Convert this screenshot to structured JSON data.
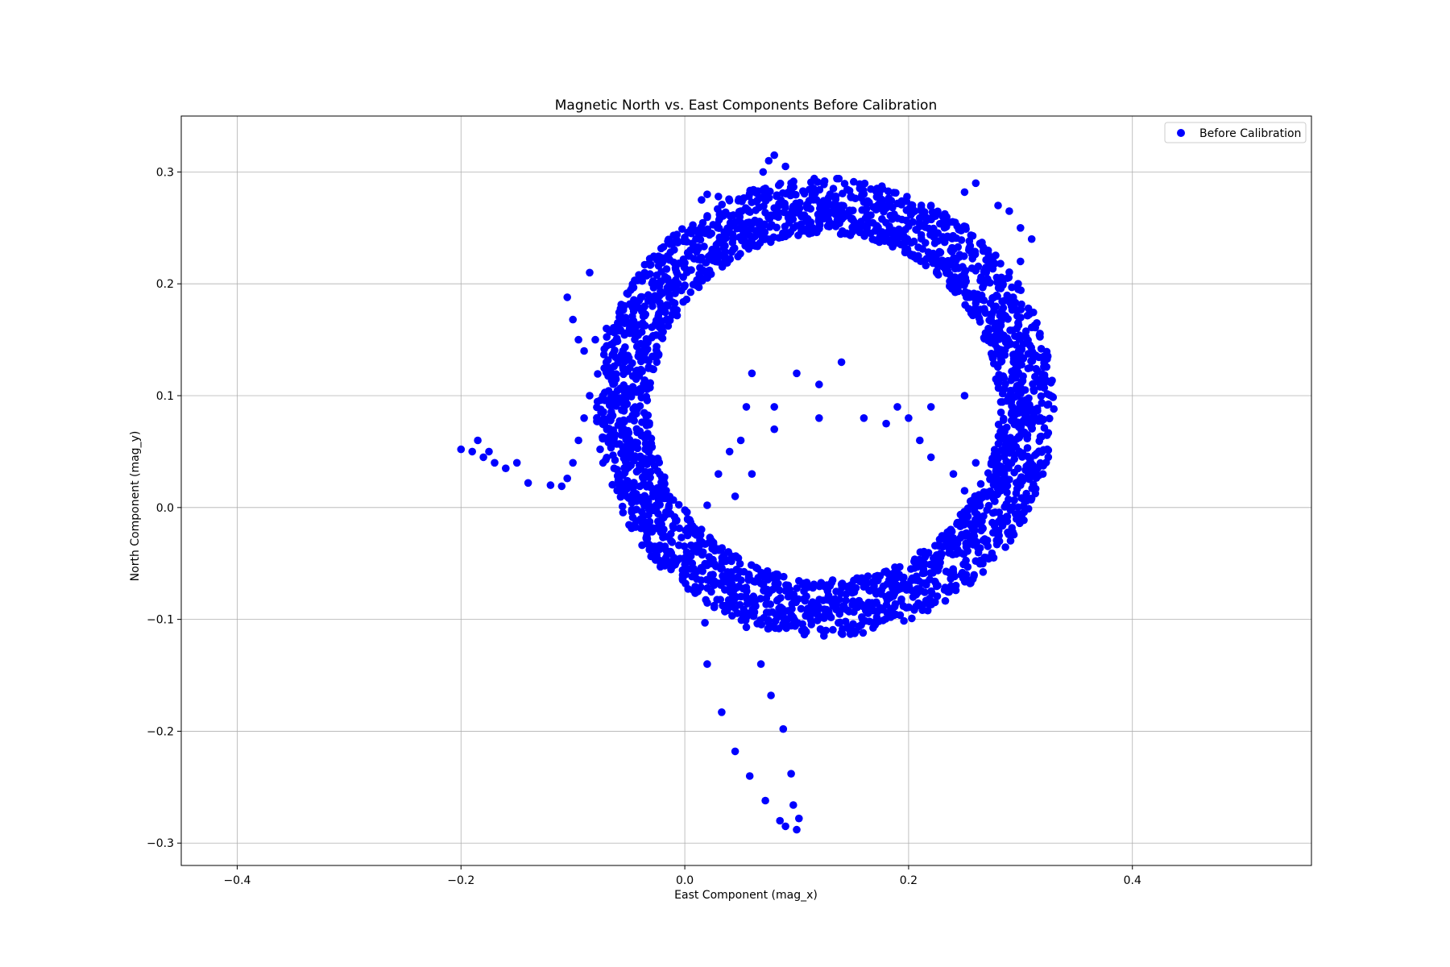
{
  "chart_data": {
    "type": "scatter",
    "title": "Magnetic North vs. East Components Before Calibration",
    "xlabel": "East Component (mag_x)",
    "ylabel": "North Component (mag_y)",
    "xlim": [
      -0.45,
      0.56
    ],
    "ylim": [
      -0.32,
      0.35
    ],
    "xticks": [
      -0.4,
      -0.2,
      0.0,
      0.2,
      0.4
    ],
    "xtick_labels": [
      "−0.4",
      "−0.2",
      "0.0",
      "0.2",
      "0.4"
    ],
    "yticks": [
      -0.3,
      -0.2,
      -0.1,
      0.0,
      0.1,
      0.2,
      0.3
    ],
    "ytick_labels": [
      "−0.3",
      "−0.2",
      "−0.1",
      "0.0",
      "0.1",
      "0.2",
      "0.3"
    ],
    "grid": true,
    "legend_position": "top-right",
    "series": [
      {
        "name": "Before Calibration",
        "color": "#0000ff",
        "marker": "circle",
        "ring": {
          "center_x": 0.125,
          "center_y": 0.09,
          "radius_x": 0.18,
          "radius_y": 0.18,
          "thickness": 0.025
        },
        "points": [
          [
            -0.2,
            0.052
          ],
          [
            -0.19,
            0.05
          ],
          [
            -0.185,
            0.06
          ],
          [
            -0.18,
            0.045
          ],
          [
            -0.175,
            0.05
          ],
          [
            -0.17,
            0.04
          ],
          [
            -0.16,
            0.035
          ],
          [
            -0.15,
            0.04
          ],
          [
            -0.14,
            0.022
          ],
          [
            -0.12,
            0.02
          ],
          [
            -0.11,
            0.019
          ],
          [
            -0.105,
            0.026
          ],
          [
            -0.1,
            0.04
          ],
          [
            -0.095,
            0.06
          ],
          [
            -0.09,
            0.08
          ],
          [
            -0.085,
            0.1
          ],
          [
            -0.08,
            0.15
          ],
          [
            -0.085,
            0.21
          ],
          [
            -0.105,
            0.188
          ],
          [
            -0.1,
            0.168
          ],
          [
            -0.095,
            0.15
          ],
          [
            -0.09,
            0.14
          ],
          [
            -0.07,
            0.16
          ],
          [
            -0.06,
            0.165
          ],
          [
            0.02,
            0.002
          ],
          [
            0.03,
            0.03
          ],
          [
            0.04,
            0.05
          ],
          [
            0.05,
            0.06
          ],
          [
            0.06,
            0.03
          ],
          [
            0.045,
            0.01
          ],
          [
            0.055,
            0.09
          ],
          [
            0.06,
            0.12
          ],
          [
            0.08,
            0.09
          ],
          [
            0.08,
            0.07
          ],
          [
            0.1,
            0.12
          ],
          [
            0.12,
            0.11
          ],
          [
            0.12,
            0.08
          ],
          [
            0.14,
            0.13
          ],
          [
            0.16,
            0.08
          ],
          [
            0.18,
            0.075
          ],
          [
            0.19,
            0.09
          ],
          [
            0.2,
            0.08
          ],
          [
            0.21,
            0.06
          ],
          [
            0.22,
            0.045
          ],
          [
            0.22,
            0.09
          ],
          [
            0.25,
            0.1
          ],
          [
            0.24,
            0.03
          ],
          [
            0.26,
            0.04
          ],
          [
            0.25,
            0.015
          ],
          [
            0.27,
            0.01
          ],
          [
            0.26,
            0.005
          ],
          [
            0.28,
            0.025
          ],
          [
            0.3,
            0.02
          ],
          [
            0.32,
            0.03
          ],
          [
            0.005,
            0.23
          ],
          [
            0.01,
            0.24
          ],
          [
            0.015,
            0.275
          ],
          [
            0.02,
            0.28
          ],
          [
            0.03,
            0.278
          ],
          [
            0.06,
            0.24
          ],
          [
            0.07,
            0.3
          ],
          [
            0.075,
            0.31
          ],
          [
            0.08,
            0.315
          ],
          [
            0.09,
            0.305
          ],
          [
            0.095,
            0.29
          ],
          [
            0.1,
            0.27
          ],
          [
            0.12,
            0.262
          ],
          [
            0.14,
            0.27
          ],
          [
            0.16,
            0.273
          ],
          [
            0.22,
            0.27
          ],
          [
            0.25,
            0.282
          ],
          [
            0.26,
            0.29
          ],
          [
            0.28,
            0.27
          ],
          [
            0.29,
            0.265
          ],
          [
            0.3,
            0.25
          ],
          [
            0.31,
            0.24
          ],
          [
            0.3,
            0.22
          ],
          [
            0.018,
            -0.103
          ],
          [
            0.02,
            -0.14
          ],
          [
            0.033,
            -0.183
          ],
          [
            0.045,
            -0.218
          ],
          [
            0.058,
            -0.24
          ],
          [
            0.068,
            -0.14
          ],
          [
            0.072,
            -0.262
          ],
          [
            0.077,
            -0.168
          ],
          [
            0.085,
            -0.28
          ],
          [
            0.088,
            -0.198
          ],
          [
            0.09,
            -0.285
          ],
          [
            0.095,
            -0.238
          ],
          [
            0.097,
            -0.266
          ],
          [
            0.1,
            -0.288
          ],
          [
            0.102,
            -0.278
          ],
          [
            0.055,
            -0.107
          ]
        ]
      }
    ]
  }
}
